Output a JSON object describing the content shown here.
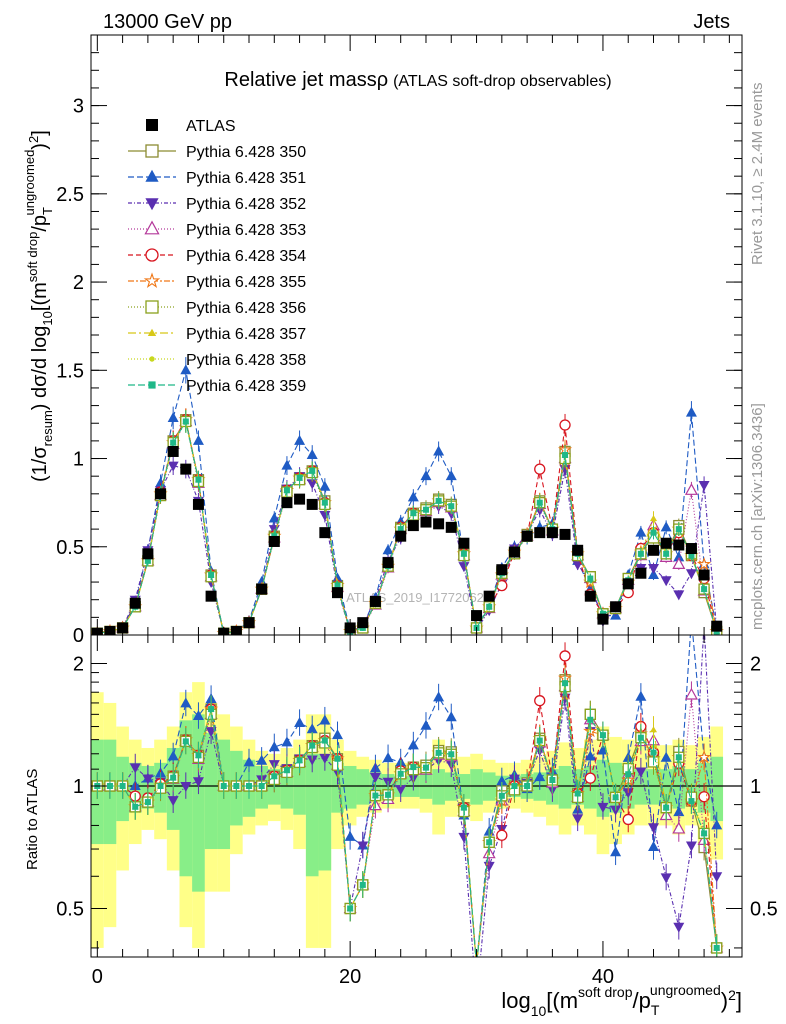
{
  "header": {
    "left": "13000 GeV pp",
    "right": "Jets"
  },
  "side_labels": {
    "rivet": "Rivet 3.1.10, ≥ 2.4M events",
    "mcplots": "mcplots.cern.ch [arXiv:1306.3436]"
  },
  "watermark": "ATLAS_2019_I1772062",
  "colors": {
    "ATLAS": "#000000",
    "350": "#8c8c32",
    "351": "#1f5bc4",
    "352": "#5a2fb0",
    "353": "#b4389a",
    "354": "#d8141e",
    "355": "#f07818",
    "356": "#8aa01c",
    "357": "#d8c818",
    "358": "#c8d81e",
    "359": "#1fb888",
    "band_inner": "#88ee88",
    "band_outer": "#ffff88"
  },
  "chart_data": [
    {
      "type": "scatter",
      "title": "Relative jet mass",
      "title_symbol": "ρ",
      "title_sub": "(ATLAS soft-drop observables)",
      "ylabel": "(1/σresum) dσ/d log10[(msoft drop/pTungroomed)2]",
      "xlim": [
        -0.5,
        51
      ],
      "ylim": [
        0,
        3.4
      ],
      "yticks": [
        0,
        0.5,
        1,
        1.5,
        2,
        2.5,
        3
      ],
      "ytick_labels": [
        "0",
        "0.5",
        "1",
        "1.5",
        "2",
        "2.5",
        "3"
      ],
      "legend_position": "top-left",
      "x": [
        0,
        1,
        2,
        3,
        4,
        5,
        6,
        7,
        8,
        9,
        10,
        11,
        12,
        13,
        14,
        15,
        16,
        17,
        18,
        19,
        20,
        21,
        22,
        23,
        24,
        25,
        26,
        27,
        28,
        29,
        30,
        31,
        32,
        33,
        34,
        35,
        36,
        37,
        38,
        39,
        40,
        41,
        42,
        43,
        44,
        45,
        46,
        47,
        48,
        49
      ],
      "series": [
        {
          "name": "ATLAS",
          "key": "ATLAS",
          "marker": "square-filled",
          "values": [
            0.01,
            0.02,
            0.04,
            0.18,
            0.46,
            0.8,
            1.04,
            0.94,
            0.74,
            0.22,
            0.01,
            0.02,
            0.07,
            0.26,
            0.53,
            0.75,
            0.77,
            0.74,
            0.58,
            0.24,
            0.04,
            0.07,
            0.19,
            0.41,
            0.56,
            0.62,
            0.64,
            0.63,
            0.61,
            0.52,
            0.11,
            0.22,
            0.37,
            0.47,
            0.56,
            0.58,
            0.58,
            0.57,
            0.48,
            0.22,
            0.09,
            0.16,
            0.29,
            0.35,
            0.48,
            0.52,
            0.51,
            0.49,
            0.34,
            0.05
          ]
        },
        {
          "name": "Pythia 6.428 350",
          "key": "350",
          "marker": "square-open",
          "values": [
            0.01,
            0.02,
            0.04,
            0.16,
            0.42,
            0.8,
            1.1,
            1.22,
            0.88,
            0.34,
            0.01,
            0.02,
            0.07,
            0.26,
            0.56,
            0.82,
            0.89,
            0.93,
            0.76,
            0.28,
            0.02,
            0.04,
            0.18,
            0.39,
            0.61,
            0.69,
            0.72,
            0.77,
            0.74,
            0.46,
            0.04,
            0.16,
            0.36,
            0.47,
            0.57,
            0.76,
            0.6,
            1.04,
            0.46,
            0.33,
            0.12,
            0.15,
            0.32,
            0.47,
            0.56,
            0.46,
            0.62,
            0.45,
            0.24,
            0.02
          ]
        },
        {
          "name": "Pythia 6.428 351",
          "key": "351",
          "marker": "triangle-up-filled",
          "values": [
            0.01,
            0.02,
            0.04,
            0.18,
            0.48,
            0.86,
            1.23,
            1.5,
            1.1,
            0.36,
            0.01,
            0.02,
            0.08,
            0.3,
            0.66,
            0.96,
            1.1,
            1.02,
            0.84,
            0.32,
            0.03,
            0.05,
            0.21,
            0.48,
            0.64,
            0.78,
            0.9,
            1.04,
            0.9,
            0.44,
            0.04,
            0.17,
            0.38,
            0.5,
            0.55,
            0.61,
            0.63,
            1.03,
            0.42,
            0.26,
            0.11,
            0.11,
            0.34,
            0.58,
            0.34,
            0.61,
            0.44,
            1.26,
            0.4,
            0.04
          ]
        },
        {
          "name": "Pythia 6.428 352",
          "key": "352",
          "marker": "triangle-down-filled",
          "values": [
            0.01,
            0.02,
            0.04,
            0.2,
            0.48,
            0.82,
            0.96,
            0.94,
            0.76,
            0.3,
            0.01,
            0.02,
            0.07,
            0.27,
            0.6,
            0.83,
            0.9,
            0.86,
            0.68,
            0.26,
            0.02,
            0.05,
            0.2,
            0.42,
            0.55,
            0.65,
            0.7,
            0.73,
            0.69,
            0.39,
            0.03,
            0.14,
            0.29,
            0.49,
            0.57,
            0.71,
            0.57,
            0.94,
            0.4,
            0.3,
            0.08,
            0.14,
            0.28,
            0.38,
            0.38,
            0.31,
            0.23,
            0.35,
            0.85,
            0.03
          ]
        },
        {
          "name": "Pythia 6.428 353",
          "key": "353",
          "marker": "triangle-up-open",
          "values": [
            0.01,
            0.02,
            0.04,
            0.16,
            0.42,
            0.79,
            1.08,
            1.21,
            0.86,
            0.33,
            0.01,
            0.02,
            0.07,
            0.26,
            0.55,
            0.81,
            0.88,
            0.92,
            0.74,
            0.27,
            0.02,
            0.04,
            0.17,
            0.38,
            0.6,
            0.68,
            0.7,
            0.75,
            0.72,
            0.45,
            0.04,
            0.15,
            0.34,
            0.46,
            0.56,
            0.74,
            0.59,
            1.0,
            0.45,
            0.32,
            0.12,
            0.15,
            0.31,
            0.45,
            0.62,
            0.44,
            0.4,
            0.82,
            0.25,
            0.02
          ]
        },
        {
          "name": "Pythia 6.428 354",
          "key": "354",
          "marker": "circle-open",
          "values": [
            0.01,
            0.02,
            0.04,
            0.17,
            0.43,
            0.81,
            1.1,
            1.22,
            0.88,
            0.34,
            0.01,
            0.02,
            0.07,
            0.26,
            0.56,
            0.82,
            0.89,
            0.93,
            0.75,
            0.28,
            0.02,
            0.04,
            0.18,
            0.39,
            0.61,
            0.69,
            0.71,
            0.76,
            0.73,
            0.46,
            0.04,
            0.16,
            0.28,
            0.47,
            0.56,
            0.94,
            0.6,
            1.19,
            0.46,
            0.23,
            0.12,
            0.15,
            0.24,
            0.49,
            0.58,
            0.46,
            0.58,
            0.45,
            0.32,
            0.02
          ]
        },
        {
          "name": "Pythia 6.428 355",
          "key": "355",
          "marker": "star-open",
          "values": [
            0.01,
            0.02,
            0.04,
            0.16,
            0.42,
            0.8,
            1.09,
            1.22,
            0.88,
            0.34,
            0.01,
            0.02,
            0.07,
            0.26,
            0.56,
            0.82,
            0.89,
            0.93,
            0.75,
            0.28,
            0.02,
            0.04,
            0.18,
            0.39,
            0.6,
            0.69,
            0.71,
            0.76,
            0.73,
            0.46,
            0.04,
            0.16,
            0.34,
            0.47,
            0.57,
            0.76,
            0.6,
            1.05,
            0.46,
            0.3,
            0.12,
            0.15,
            0.3,
            0.47,
            0.56,
            0.46,
            0.6,
            0.45,
            0.4,
            0.02
          ]
        },
        {
          "name": "Pythia 6.428 356",
          "key": "356",
          "marker": "square-open",
          "values": [
            0.01,
            0.02,
            0.04,
            0.16,
            0.42,
            0.79,
            1.09,
            1.21,
            0.87,
            0.33,
            0.01,
            0.02,
            0.07,
            0.26,
            0.55,
            0.81,
            0.88,
            0.92,
            0.74,
            0.27,
            0.02,
            0.04,
            0.18,
            0.39,
            0.6,
            0.68,
            0.71,
            0.76,
            0.73,
            0.45,
            0.04,
            0.16,
            0.35,
            0.46,
            0.56,
            0.75,
            0.6,
            1.0,
            0.45,
            0.33,
            0.12,
            0.15,
            0.32,
            0.46,
            0.55,
            0.46,
            0.6,
            0.46,
            0.26,
            0.02
          ]
        },
        {
          "name": "Pythia 6.428 357",
          "key": "357",
          "marker": "tri-small",
          "values": [
            0.01,
            0.02,
            0.04,
            0.16,
            0.42,
            0.8,
            1.09,
            1.21,
            0.88,
            0.34,
            0.01,
            0.02,
            0.07,
            0.26,
            0.56,
            0.82,
            0.89,
            0.93,
            0.75,
            0.28,
            0.02,
            0.04,
            0.18,
            0.39,
            0.6,
            0.69,
            0.71,
            0.76,
            0.73,
            0.46,
            0.04,
            0.16,
            0.35,
            0.47,
            0.56,
            0.75,
            0.6,
            1.02,
            0.46,
            0.32,
            0.12,
            0.15,
            0.31,
            0.46,
            0.66,
            0.46,
            0.6,
            0.45,
            0.26,
            0.02
          ]
        },
        {
          "name": "Pythia 6.428 358",
          "key": "358",
          "marker": "dot-small",
          "values": [
            0.01,
            0.02,
            0.04,
            0.16,
            0.42,
            0.8,
            1.09,
            1.21,
            0.88,
            0.34,
            0.01,
            0.02,
            0.07,
            0.26,
            0.56,
            0.82,
            0.89,
            0.93,
            0.75,
            0.28,
            0.02,
            0.04,
            0.18,
            0.39,
            0.6,
            0.69,
            0.71,
            0.76,
            0.73,
            0.46,
            0.04,
            0.16,
            0.35,
            0.47,
            0.56,
            0.75,
            0.6,
            1.02,
            0.46,
            0.32,
            0.12,
            0.15,
            0.31,
            0.46,
            0.6,
            0.46,
            0.6,
            0.45,
            0.26,
            0.02
          ]
        },
        {
          "name": "Pythia 6.428 359",
          "key": "359",
          "marker": "square-small-filled",
          "values": [
            0.01,
            0.02,
            0.04,
            0.16,
            0.42,
            0.8,
            1.09,
            1.21,
            0.88,
            0.34,
            0.01,
            0.02,
            0.07,
            0.26,
            0.56,
            0.82,
            0.89,
            0.93,
            0.75,
            0.28,
            0.02,
            0.04,
            0.18,
            0.39,
            0.6,
            0.69,
            0.71,
            0.76,
            0.73,
            0.46,
            0.04,
            0.16,
            0.35,
            0.47,
            0.56,
            0.75,
            0.6,
            1.02,
            0.46,
            0.32,
            0.12,
            0.15,
            0.31,
            0.46,
            0.58,
            0.46,
            0.6,
            0.45,
            0.26,
            0.02
          ]
        }
      ]
    },
    {
      "type": "scatter",
      "ylabel": "Ratio to ATLAS",
      "xlabel": "log10[(msoft drop/pTungroomed)2]",
      "xlim": [
        -0.5,
        51
      ],
      "ylim": [
        0.38,
        2.35
      ],
      "y_scale": "log",
      "yticks": [
        0.5,
        1,
        2
      ],
      "ytick_labels": [
        "0.5",
        "1",
        "2"
      ],
      "xticks": [
        0,
        20,
        40
      ],
      "xtick_labels": [
        "0",
        "20",
        "40"
      ],
      "reference_line": 1,
      "band_inner": [
        [
          0.72,
          1.3
        ],
        [
          0.72,
          1.3
        ],
        [
          0.82,
          1.18
        ],
        [
          0.86,
          1.14
        ],
        [
          0.88,
          1.12
        ],
        [
          0.86,
          1.14
        ],
        [
          0.78,
          1.24
        ],
        [
          0.6,
          1.45
        ],
        [
          0.55,
          1.5
        ],
        [
          0.7,
          1.35
        ],
        [
          0.7,
          1.3
        ],
        [
          0.8,
          1.22
        ],
        [
          0.84,
          1.16
        ],
        [
          0.88,
          1.12
        ],
        [
          0.9,
          1.1
        ],
        [
          0.88,
          1.12
        ],
        [
          0.85,
          1.15
        ],
        [
          0.6,
          1.2
        ],
        [
          0.62,
          1.2
        ],
        [
          0.86,
          1.14
        ],
        [
          0.88,
          1.12
        ],
        [
          0.9,
          1.1
        ],
        [
          0.92,
          1.08
        ],
        [
          0.93,
          1.07
        ],
        [
          0.94,
          1.06
        ],
        [
          0.94,
          1.06
        ],
        [
          0.93,
          1.07
        ],
        [
          0.9,
          1.1
        ],
        [
          0.92,
          1.08
        ],
        [
          0.93,
          1.07
        ],
        [
          0.9,
          1.1
        ],
        [
          0.92,
          1.08
        ],
        [
          0.94,
          1.06
        ],
        [
          0.94,
          1.06
        ],
        [
          0.93,
          1.07
        ],
        [
          0.92,
          1.08
        ],
        [
          0.9,
          1.1
        ],
        [
          0.88,
          1.12
        ],
        [
          0.9,
          1.1
        ],
        [
          0.88,
          1.12
        ],
        [
          0.84,
          1.16
        ],
        [
          0.86,
          1.14
        ],
        [
          0.88,
          1.12
        ],
        [
          0.9,
          1.1
        ],
        [
          0.9,
          1.1
        ],
        [
          0.9,
          1.1
        ],
        [
          0.88,
          1.12
        ],
        [
          0.9,
          1.1
        ],
        [
          0.86,
          1.14
        ],
        [
          0.82,
          1.18
        ]
      ],
      "band_outer": [
        [
          0.4,
          1.7
        ],
        [
          0.45,
          1.6
        ],
        [
          0.62,
          1.4
        ],
        [
          0.72,
          1.3
        ],
        [
          0.78,
          1.24
        ],
        [
          0.74,
          1.3
        ],
        [
          0.62,
          1.4
        ],
        [
          0.45,
          1.7
        ],
        [
          0.4,
          1.8
        ],
        [
          0.55,
          1.6
        ],
        [
          0.55,
          1.5
        ],
        [
          0.68,
          1.4
        ],
        [
          0.76,
          1.3
        ],
        [
          0.8,
          1.22
        ],
        [
          0.82,
          1.2
        ],
        [
          0.78,
          1.24
        ],
        [
          0.7,
          1.3
        ],
        [
          0.4,
          1.5
        ],
        [
          0.4,
          1.5
        ],
        [
          0.7,
          1.3
        ],
        [
          0.8,
          1.22
        ],
        [
          0.84,
          1.18
        ],
        [
          0.86,
          1.16
        ],
        [
          0.88,
          1.14
        ],
        [
          0.88,
          1.14
        ],
        [
          0.88,
          1.14
        ],
        [
          0.86,
          1.16
        ],
        [
          0.76,
          1.3
        ],
        [
          0.84,
          1.2
        ],
        [
          0.86,
          1.18
        ],
        [
          0.82,
          1.2
        ],
        [
          0.86,
          1.16
        ],
        [
          0.88,
          1.14
        ],
        [
          0.88,
          1.14
        ],
        [
          0.86,
          1.16
        ],
        [
          0.84,
          1.18
        ],
        [
          0.8,
          1.22
        ],
        [
          0.76,
          1.28
        ],
        [
          0.8,
          1.24
        ],
        [
          0.76,
          1.3
        ],
        [
          0.68,
          1.4
        ],
        [
          0.72,
          1.32
        ],
        [
          0.76,
          1.3
        ],
        [
          0.8,
          1.26
        ],
        [
          0.8,
          1.26
        ],
        [
          0.8,
          1.26
        ],
        [
          0.76,
          1.3
        ],
        [
          0.8,
          1.26
        ],
        [
          0.72,
          1.32
        ],
        [
          0.66,
          1.4
        ]
      ]
    }
  ]
}
